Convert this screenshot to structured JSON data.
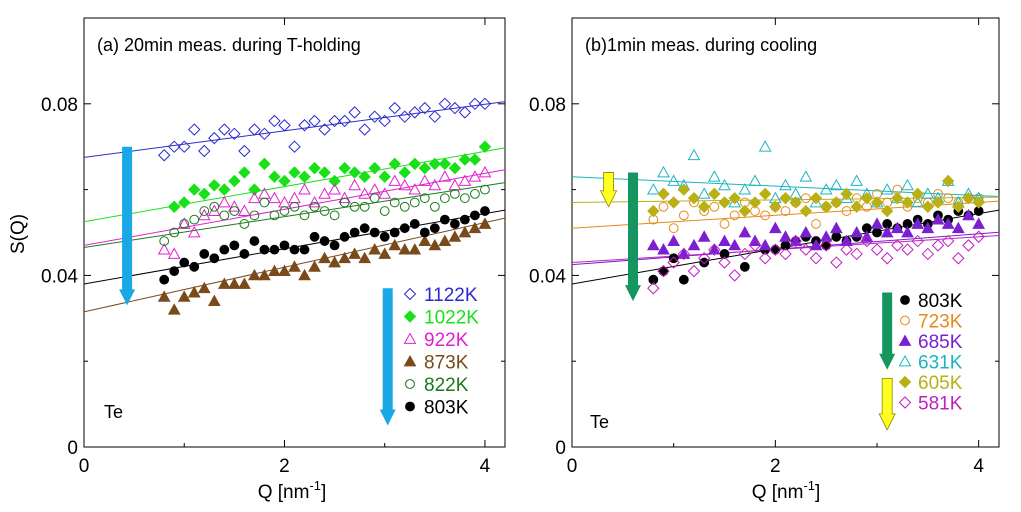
{
  "chart_data": [
    {
      "type": "scatter",
      "panel_id": "a",
      "title": "(a) 20min meas. during T-holding",
      "element": "Te",
      "xlabel": "Q [nm",
      "xlabel_sup": "-1",
      "xlabel_tail": "]",
      "ylabel": "S(Q)",
      "xlim": [
        0,
        4.2
      ],
      "ylim": [
        0,
        0.1
      ],
      "xticks": [
        0,
        2,
        4
      ],
      "xtick_labels": [
        "0",
        "2",
        "4"
      ],
      "yticks": [
        0,
        0.04,
        0.08
      ],
      "ytick_labels": [
        "0",
        "0.04",
        "0.08"
      ],
      "legend_position": "bottom-right",
      "arrows": [
        {
          "name": "left",
          "color": "#1aa7e6",
          "x": 0.43,
          "y_from": 0.07,
          "y_to": 0.033
        },
        {
          "name": "legend",
          "color": "#1aa7e6",
          "x": 3.03,
          "y_from": 0.037,
          "y_to": 0.005
        }
      ],
      "series": [
        {
          "name": "1122K",
          "marker": "diamond-open",
          "color": "#2a2ad0",
          "fit": [
            0.0675,
            0.0031
          ],
          "x": [
            0.8,
            0.9,
            1.0,
            1.1,
            1.2,
            1.3,
            1.4,
            1.5,
            1.6,
            1.7,
            1.8,
            1.9,
            2.0,
            2.1,
            2.2,
            2.3,
            2.4,
            2.5,
            2.6,
            2.7,
            2.8,
            2.9,
            3.0,
            3.1,
            3.2,
            3.3,
            3.4,
            3.5,
            3.6,
            3.7,
            3.8,
            3.9,
            4.0
          ],
          "y": [
            0.068,
            0.07,
            0.07,
            0.074,
            0.069,
            0.072,
            0.074,
            0.073,
            0.069,
            0.074,
            0.073,
            0.076,
            0.075,
            0.07,
            0.075,
            0.076,
            0.074,
            0.076,
            0.076,
            0.078,
            0.074,
            0.077,
            0.076,
            0.079,
            0.077,
            0.078,
            0.079,
            0.077,
            0.08,
            0.079,
            0.078,
            0.08,
            0.08
          ]
        },
        {
          "name": "1022K",
          "marker": "diamond-filled",
          "color": "#19e019",
          "fit": [
            0.0525,
            0.0041
          ],
          "x": [
            0.9,
            1.0,
            1.1,
            1.2,
            1.3,
            1.4,
            1.5,
            1.6,
            1.7,
            1.8,
            1.9,
            2.0,
            2.1,
            2.2,
            2.3,
            2.4,
            2.5,
            2.6,
            2.7,
            2.8,
            2.9,
            3.0,
            3.1,
            3.2,
            3.3,
            3.4,
            3.5,
            3.6,
            3.7,
            3.8,
            3.9,
            4.0
          ],
          "y": [
            0.056,
            0.057,
            0.06,
            0.059,
            0.061,
            0.06,
            0.062,
            0.064,
            0.06,
            0.066,
            0.063,
            0.062,
            0.064,
            0.063,
            0.065,
            0.064,
            0.062,
            0.065,
            0.064,
            0.063,
            0.065,
            0.063,
            0.066,
            0.064,
            0.066,
            0.065,
            0.066,
            0.066,
            0.065,
            0.067,
            0.067,
            0.07
          ]
        },
        {
          "name": "922K",
          "marker": "triangle-open",
          "color": "#e020d0",
          "fit": [
            0.047,
            0.0042
          ],
          "x": [
            0.8,
            0.9,
            1.0,
            1.1,
            1.2,
            1.3,
            1.4,
            1.5,
            1.6,
            1.7,
            1.8,
            1.9,
            2.0,
            2.1,
            2.2,
            2.3,
            2.4,
            2.5,
            2.6,
            2.7,
            2.8,
            2.9,
            3.0,
            3.1,
            3.2,
            3.3,
            3.4,
            3.5,
            3.6,
            3.7,
            3.8,
            3.9,
            4.0
          ],
          "y": [
            0.046,
            0.045,
            0.052,
            0.05,
            0.054,
            0.055,
            0.057,
            0.056,
            0.055,
            0.058,
            0.059,
            0.058,
            0.057,
            0.058,
            0.06,
            0.057,
            0.059,
            0.06,
            0.058,
            0.061,
            0.059,
            0.06,
            0.059,
            0.062,
            0.061,
            0.06,
            0.062,
            0.061,
            0.063,
            0.061,
            0.062,
            0.063,
            0.064
          ]
        },
        {
          "name": "873K",
          "marker": "triangle-filled",
          "color": "#7a4a1a",
          "fit": [
            0.0315,
            0.0052
          ],
          "x": [
            0.8,
            0.9,
            1.0,
            1.1,
            1.2,
            1.3,
            1.4,
            1.5,
            1.6,
            1.7,
            1.8,
            1.9,
            2.0,
            2.1,
            2.2,
            2.3,
            2.4,
            2.5,
            2.6,
            2.7,
            2.8,
            2.9,
            3.0,
            3.1,
            3.2,
            3.3,
            3.4,
            3.5,
            3.6,
            3.7,
            3.8,
            3.9,
            4.0
          ],
          "y": [
            0.035,
            0.032,
            0.035,
            0.036,
            0.037,
            0.034,
            0.038,
            0.038,
            0.038,
            0.04,
            0.04,
            0.041,
            0.041,
            0.042,
            0.04,
            0.042,
            0.044,
            0.043,
            0.044,
            0.045,
            0.044,
            0.046,
            0.045,
            0.047,
            0.046,
            0.046,
            0.048,
            0.047,
            0.048,
            0.049,
            0.05,
            0.051,
            0.052
          ]
        },
        {
          "name": "822K",
          "marker": "circle-open",
          "color": "#1a7a1a",
          "fit": [
            0.0465,
            0.0036
          ],
          "x": [
            0.8,
            0.9,
            1.0,
            1.1,
            1.2,
            1.3,
            1.4,
            1.5,
            1.6,
            1.7,
            1.8,
            1.9,
            2.0,
            2.1,
            2.2,
            2.3,
            2.4,
            2.5,
            2.6,
            2.7,
            2.8,
            2.9,
            3.0,
            3.1,
            3.2,
            3.3,
            3.4,
            3.5,
            3.6,
            3.7,
            3.8,
            3.9,
            4.0
          ],
          "y": [
            0.048,
            0.05,
            0.052,
            0.053,
            0.055,
            0.056,
            0.054,
            0.055,
            0.052,
            0.054,
            0.057,
            0.054,
            0.055,
            0.056,
            0.054,
            0.056,
            0.055,
            0.054,
            0.057,
            0.056,
            0.056,
            0.058,
            0.055,
            0.057,
            0.056,
            0.057,
            0.058,
            0.056,
            0.058,
            0.059,
            0.058,
            0.059,
            0.06
          ]
        },
        {
          "name": "803K",
          "marker": "circle-filled",
          "color": "#000000",
          "fit": [
            0.038,
            0.0041
          ],
          "x": [
            0.8,
            0.9,
            1.0,
            1.1,
            1.2,
            1.3,
            1.4,
            1.5,
            1.6,
            1.7,
            1.8,
            1.9,
            2.0,
            2.1,
            2.2,
            2.3,
            2.4,
            2.5,
            2.6,
            2.7,
            2.8,
            2.9,
            3.0,
            3.1,
            3.2,
            3.3,
            3.4,
            3.5,
            3.6,
            3.7,
            3.8,
            3.9,
            4.0
          ],
          "y": [
            0.039,
            0.041,
            0.043,
            0.042,
            0.045,
            0.044,
            0.046,
            0.047,
            0.045,
            0.048,
            0.046,
            0.046,
            0.047,
            0.046,
            0.046,
            0.049,
            0.048,
            0.047,
            0.049,
            0.05,
            0.051,
            0.05,
            0.049,
            0.05,
            0.051,
            0.052,
            0.05,
            0.051,
            0.053,
            0.052,
            0.053,
            0.054,
            0.055
          ]
        }
      ]
    },
    {
      "type": "scatter",
      "panel_id": "b",
      "title": "(b)1min meas. during cooling",
      "element": "Te",
      "xlabel": "Q [nm",
      "xlabel_sup": "-1",
      "xlabel_tail": "]",
      "ylabel": "",
      "xlim": [
        0,
        4.2
      ],
      "ylim": [
        0,
        0.1
      ],
      "xticks": [
        0,
        2,
        4
      ],
      "xtick_labels": [
        "0",
        "2",
        "4"
      ],
      "yticks": [
        0,
        0.04,
        0.08
      ],
      "ytick_labels": [
        "0",
        "0.04",
        "0.08"
      ],
      "legend_position": "bottom-right",
      "arrows": [
        {
          "name": "yellow-left",
          "color": "#ffff20",
          "x": 0.36,
          "y_from": 0.064,
          "y_to": 0.056
        },
        {
          "name": "green-left",
          "color": "#159660",
          "x": 0.6,
          "y_from": 0.064,
          "y_to": 0.034
        },
        {
          "name": "green-legend",
          "color": "#159660",
          "x": 3.1,
          "y_from": 0.036,
          "y_to": 0.018
        },
        {
          "name": "yellow-legend",
          "color": "#ffff20",
          "x": 3.1,
          "y_from": 0.016,
          "y_to": 0.004
        }
      ],
      "series": [
        {
          "name": "803K",
          "marker": "circle-filled",
          "color": "#000000",
          "fit": [
            0.038,
            0.0041
          ],
          "x": [
            0.8,
            0.9,
            1.0,
            1.1,
            1.3,
            1.5,
            1.7,
            1.9,
            2.0,
            2.1,
            2.2,
            2.3,
            2.4,
            2.5,
            2.6,
            2.7,
            2.8,
            2.9,
            3.0,
            3.1,
            3.2,
            3.3,
            3.4,
            3.5,
            3.6,
            3.7,
            3.8,
            3.9,
            4.0
          ],
          "y": [
            0.039,
            0.041,
            0.044,
            0.039,
            0.043,
            0.045,
            0.042,
            0.046,
            0.046,
            0.047,
            0.048,
            0.049,
            0.048,
            0.047,
            0.049,
            0.048,
            0.049,
            0.051,
            0.05,
            0.052,
            0.051,
            0.052,
            0.053,
            0.052,
            0.054,
            0.053,
            0.055,
            0.054,
            0.055
          ]
        },
        {
          "name": "723K",
          "marker": "circle-open",
          "color": "#e58a1a",
          "fit": [
            0.051,
            0.0015
          ],
          "x": [
            0.8,
            0.9,
            1.0,
            1.1,
            1.2,
            1.3,
            1.4,
            1.5,
            1.6,
            1.7,
            1.8,
            1.9,
            2.0,
            2.1,
            2.2,
            2.3,
            2.4,
            2.5,
            2.6,
            2.7,
            2.8,
            2.9,
            3.0,
            3.1,
            3.2,
            3.3,
            3.4,
            3.5,
            3.6,
            3.7,
            3.8,
            3.9,
            4.0
          ],
          "y": [
            0.053,
            0.056,
            0.051,
            0.054,
            0.057,
            0.055,
            0.056,
            0.052,
            0.054,
            0.057,
            0.055,
            0.054,
            0.056,
            0.055,
            0.057,
            0.058,
            0.052,
            0.056,
            0.057,
            0.055,
            0.058,
            0.056,
            0.059,
            0.057,
            0.06,
            0.056,
            0.058,
            0.057,
            0.059,
            0.058,
            0.057,
            0.058,
            0.058
          ]
        },
        {
          "name": "685K",
          "marker": "triangle-filled",
          "color": "#7a20d0",
          "fit": [
            0.0425,
            0.0018
          ],
          "x": [
            0.8,
            0.9,
            1.0,
            1.1,
            1.2,
            1.3,
            1.4,
            1.5,
            1.6,
            1.7,
            1.8,
            1.9,
            2.0,
            2.1,
            2.2,
            2.3,
            2.4,
            2.5,
            2.6,
            2.7,
            2.8,
            2.9,
            3.0,
            3.1,
            3.2,
            3.3,
            3.4,
            3.5,
            3.6,
            3.7,
            3.8,
            3.9,
            4.0
          ],
          "y": [
            0.047,
            0.046,
            0.048,
            0.045,
            0.047,
            0.049,
            0.046,
            0.048,
            0.047,
            0.05,
            0.048,
            0.047,
            0.051,
            0.049,
            0.048,
            0.05,
            0.047,
            0.049,
            0.051,
            0.048,
            0.05,
            0.049,
            0.052,
            0.05,
            0.051,
            0.05,
            0.052,
            0.051,
            0.053,
            0.052,
            0.051,
            0.054,
            0.052
          ]
        },
        {
          "name": "631K",
          "marker": "triangle-open",
          "color": "#1ab5c0",
          "fit": [
            0.063,
            -0.0011
          ],
          "x": [
            0.8,
            0.9,
            1.0,
            1.1,
            1.2,
            1.3,
            1.4,
            1.5,
            1.6,
            1.7,
            1.8,
            1.9,
            2.0,
            2.1,
            2.2,
            2.3,
            2.4,
            2.5,
            2.6,
            2.7,
            2.8,
            2.9,
            3.0,
            3.1,
            3.2,
            3.3,
            3.4,
            3.5,
            3.6,
            3.7,
            3.8,
            3.9,
            4.0
          ],
          "y": [
            0.06,
            0.064,
            0.062,
            0.061,
            0.068,
            0.059,
            0.063,
            0.061,
            0.057,
            0.06,
            0.062,
            0.07,
            0.058,
            0.061,
            0.059,
            0.063,
            0.057,
            0.06,
            0.061,
            0.058,
            0.062,
            0.059,
            0.057,
            0.06,
            0.058,
            0.061,
            0.057,
            0.059,
            0.058,
            0.062,
            0.057,
            0.059,
            0.058
          ]
        },
        {
          "name": "605K",
          "marker": "diamond-filled",
          "color": "#b8b015",
          "fit": [
            0.057,
            0.0003
          ],
          "x": [
            0.8,
            0.9,
            1.0,
            1.1,
            1.2,
            1.3,
            1.4,
            1.5,
            1.6,
            1.7,
            1.8,
            1.9,
            2.0,
            2.1,
            2.2,
            2.3,
            2.4,
            2.5,
            2.6,
            2.7,
            2.8,
            2.9,
            3.0,
            3.1,
            3.2,
            3.3,
            3.4,
            3.5,
            3.6,
            3.7,
            3.8,
            3.9,
            4.0
          ],
          "y": [
            0.055,
            0.059,
            0.057,
            0.06,
            0.058,
            0.056,
            0.059,
            0.057,
            0.058,
            0.055,
            0.057,
            0.059,
            0.056,
            0.058,
            0.057,
            0.055,
            0.058,
            0.056,
            0.057,
            0.059,
            0.056,
            0.058,
            0.057,
            0.055,
            0.058,
            0.057,
            0.059,
            0.056,
            0.057,
            0.062,
            0.056,
            0.058,
            0.057
          ]
        },
        {
          "name": "581K",
          "marker": "diamond-open",
          "color": "#c020c0",
          "fit": [
            0.043,
            0.0015
          ],
          "x": [
            0.8,
            0.9,
            1.0,
            1.1,
            1.2,
            1.3,
            1.4,
            1.5,
            1.6,
            1.7,
            1.8,
            1.9,
            2.0,
            2.1,
            2.2,
            2.3,
            2.4,
            2.5,
            2.6,
            2.7,
            2.8,
            2.9,
            3.0,
            3.1,
            3.2,
            3.3,
            3.4,
            3.5,
            3.6,
            3.7,
            3.8,
            3.9,
            4.0
          ],
          "y": [
            0.037,
            0.041,
            0.043,
            0.045,
            0.041,
            0.044,
            0.046,
            0.043,
            0.04,
            0.045,
            0.047,
            0.044,
            0.046,
            0.045,
            0.048,
            0.046,
            0.044,
            0.047,
            0.043,
            0.046,
            0.045,
            0.048,
            0.046,
            0.044,
            0.047,
            0.046,
            0.048,
            0.045,
            0.047,
            0.048,
            0.044,
            0.047,
            0.049
          ]
        }
      ]
    }
  ]
}
